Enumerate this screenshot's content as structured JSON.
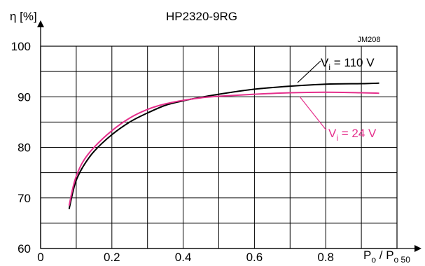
{
  "chart_data": {
    "type": "line",
    "title": "HP2320-9RG",
    "code": "JM208",
    "ylabel": "η [%]",
    "xlabel": {
      "main": "P",
      "sub1": "o",
      "sep": " / P",
      "sub2": "o 50"
    },
    "xlim": [
      0,
      1.0
    ],
    "ylim": [
      60,
      100
    ],
    "x_ticks": [
      0,
      0.2,
      0.4,
      0.6,
      0.8
    ],
    "x_tick_labels": [
      "0",
      "0.2",
      "0.4",
      "0.6",
      "0.8"
    ],
    "y_ticks": [
      60,
      70,
      80,
      90,
      100
    ],
    "y_tick_labels": [
      "60",
      "70",
      "80",
      "90",
      "100"
    ],
    "x_grid": [
      0.1,
      0.2,
      0.3,
      0.4,
      0.5,
      0.6,
      0.7,
      0.8,
      0.9
    ],
    "y_grid": [
      65,
      70,
      75,
      80,
      85,
      90,
      95
    ],
    "grid": true,
    "series": [
      {
        "name": "Vi = 110 V",
        "label": {
          "main": "V",
          "sub": "i",
          "rest": " = 110 V"
        },
        "color": "#000000",
        "x": [
          0.08,
          0.09,
          0.1,
          0.12,
          0.15,
          0.2,
          0.25,
          0.3,
          0.35,
          0.4,
          0.45,
          0.5,
          0.6,
          0.7,
          0.8,
          0.9,
          0.95
        ],
        "values": [
          67.8,
          71.0,
          73.5,
          76.3,
          79.2,
          82.5,
          85.0,
          86.8,
          88.3,
          89.2,
          89.9,
          90.5,
          91.5,
          92.1,
          92.5,
          92.6,
          92.7
        ]
      },
      {
        "name": "Vi = 24 V",
        "label": {
          "main": "V",
          "sub": "i",
          "rest": " = 24 V"
        },
        "color": "#e5308c",
        "x": [
          0.08,
          0.09,
          0.1,
          0.12,
          0.15,
          0.2,
          0.25,
          0.3,
          0.35,
          0.4,
          0.45,
          0.5,
          0.6,
          0.7,
          0.8,
          0.9,
          0.95
        ],
        "values": [
          68.5,
          71.8,
          74.3,
          77.3,
          80.0,
          83.3,
          85.8,
          87.5,
          88.6,
          89.3,
          89.8,
          90.1,
          90.5,
          90.8,
          90.9,
          90.8,
          90.7
        ]
      }
    ]
  }
}
